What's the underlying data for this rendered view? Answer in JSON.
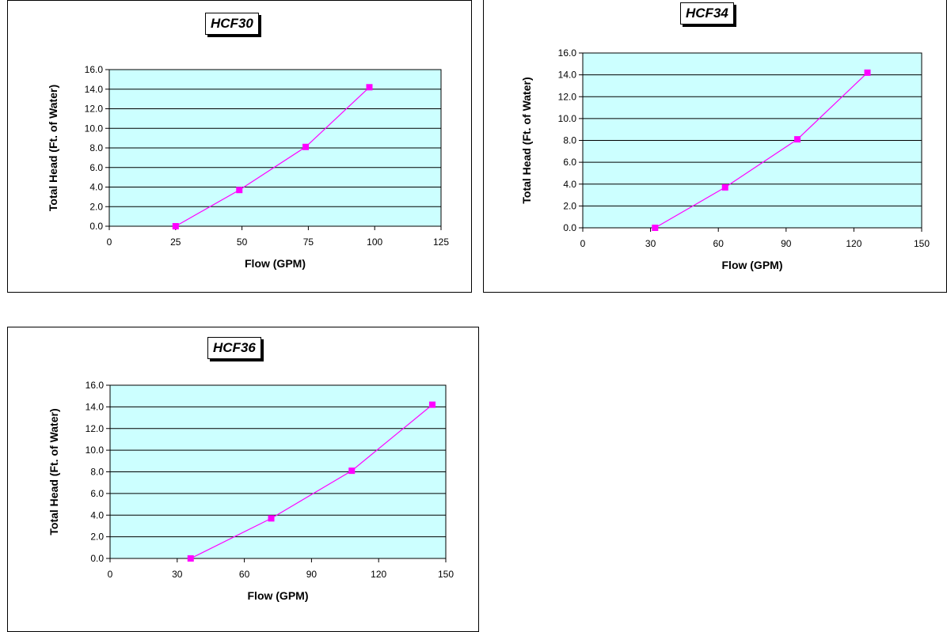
{
  "chart_data": [
    {
      "type": "line",
      "title": "HCF30",
      "xlabel": "Flow (GPM)",
      "ylabel": "Total Head (Ft. of Water)",
      "xlim": [
        0,
        125
      ],
      "ylim": [
        0,
        16
      ],
      "xticks": [
        "0",
        "25",
        "50",
        "75",
        "100",
        "125"
      ],
      "yticks": [
        "0.0",
        "2.0",
        "4.0",
        "6.0",
        "8.0",
        "10.0",
        "12.0",
        "14.0",
        "16.0"
      ],
      "grid": "horizontal",
      "series": [
        {
          "x": [
            25,
            49,
            74,
            98
          ],
          "y": [
            0.0,
            3.7,
            8.1,
            14.2
          ]
        }
      ]
    },
    {
      "type": "line",
      "title": "HCF34",
      "xlabel": "Flow (GPM)",
      "ylabel": "Total Head (Ft. of Water)",
      "xlim": [
        0,
        150
      ],
      "ylim": [
        0,
        16
      ],
      "xticks": [
        "0",
        "30",
        "60",
        "90",
        "120",
        "150"
      ],
      "yticks": [
        "0.0",
        "2.0",
        "4.0",
        "6.0",
        "8.0",
        "10.0",
        "12.0",
        "14.0",
        "16.0"
      ],
      "grid": "horizontal",
      "series": [
        {
          "x": [
            32,
            63,
            95,
            126
          ],
          "y": [
            0.0,
            3.7,
            8.1,
            14.2
          ]
        }
      ]
    },
    {
      "type": "line",
      "title": "HCF36",
      "xlabel": "Flow (GPM)",
      "ylabel": "Total Head (Ft. of Water)",
      "xlim": [
        0,
        150
      ],
      "ylim": [
        0,
        16
      ],
      "xticks": [
        "0",
        "30",
        "60",
        "90",
        "120",
        "150"
      ],
      "yticks": [
        "0.0",
        "2.0",
        "4.0",
        "6.0",
        "8.0",
        "10.0",
        "12.0",
        "14.0",
        "16.0"
      ],
      "grid": "horizontal",
      "series": [
        {
          "x": [
            36,
            72,
            108,
            144
          ],
          "y": [
            0.0,
            3.7,
            8.1,
            14.2
          ]
        }
      ]
    }
  ],
  "colors": {
    "plot_background": "#ccffff",
    "series_line": "#ff00ff",
    "series_marker": "#ff00ff",
    "grid": "#000000"
  }
}
